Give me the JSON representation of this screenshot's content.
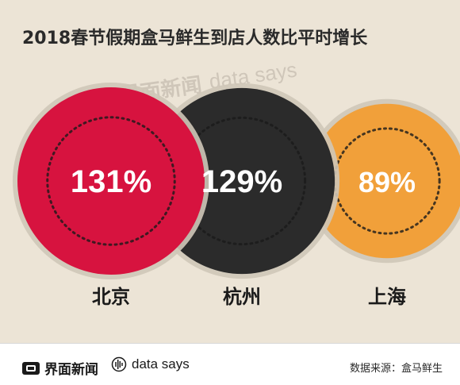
{
  "title": "2018春节假期盒马鲜生到店人数比平时增长",
  "chart_data": {
    "type": "bubble",
    "title": "2018春节假期盒马鲜生到店人数比平时增长",
    "categories": [
      "北京",
      "杭州",
      "上海"
    ],
    "values": [
      131,
      129,
      89
    ],
    "labels": [
      "131%",
      "129%",
      "89%"
    ],
    "unit": "%",
    "colors": [
      "#d7133f",
      "#2b2b2b",
      "#f1a03a"
    ]
  },
  "watermark": {
    "brand": "界面新闻",
    "datasays": "data says"
  },
  "footer": {
    "brand": "界面新闻",
    "datasays": "data says",
    "source": "数据来源：盒马鲜生"
  }
}
